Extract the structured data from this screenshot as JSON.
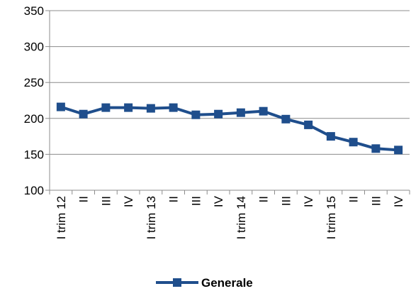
{
  "chart_data": {
    "type": "line",
    "categories": [
      "I trim 12",
      "II",
      "III",
      "IV",
      "I trim 13",
      "II",
      "III",
      "IV",
      "I trim 14",
      "II",
      "III",
      "IV",
      "I trim 15",
      "II",
      "III",
      "IV"
    ],
    "series": [
      {
        "name": "Generale",
        "values": [
          216,
          206,
          215,
          215,
          214,
          215,
          205,
          206,
          208,
          210,
          199,
          191,
          175,
          167,
          158,
          156
        ],
        "color": "#1F4E8C"
      }
    ],
    "title": "",
    "xlabel": "",
    "ylabel": "",
    "ylim": [
      100,
      350
    ],
    "yticks": [
      "100",
      "150",
      "200",
      "250",
      "300",
      "350"
    ],
    "grid": true,
    "legend": "bottom",
    "marker": "square"
  }
}
